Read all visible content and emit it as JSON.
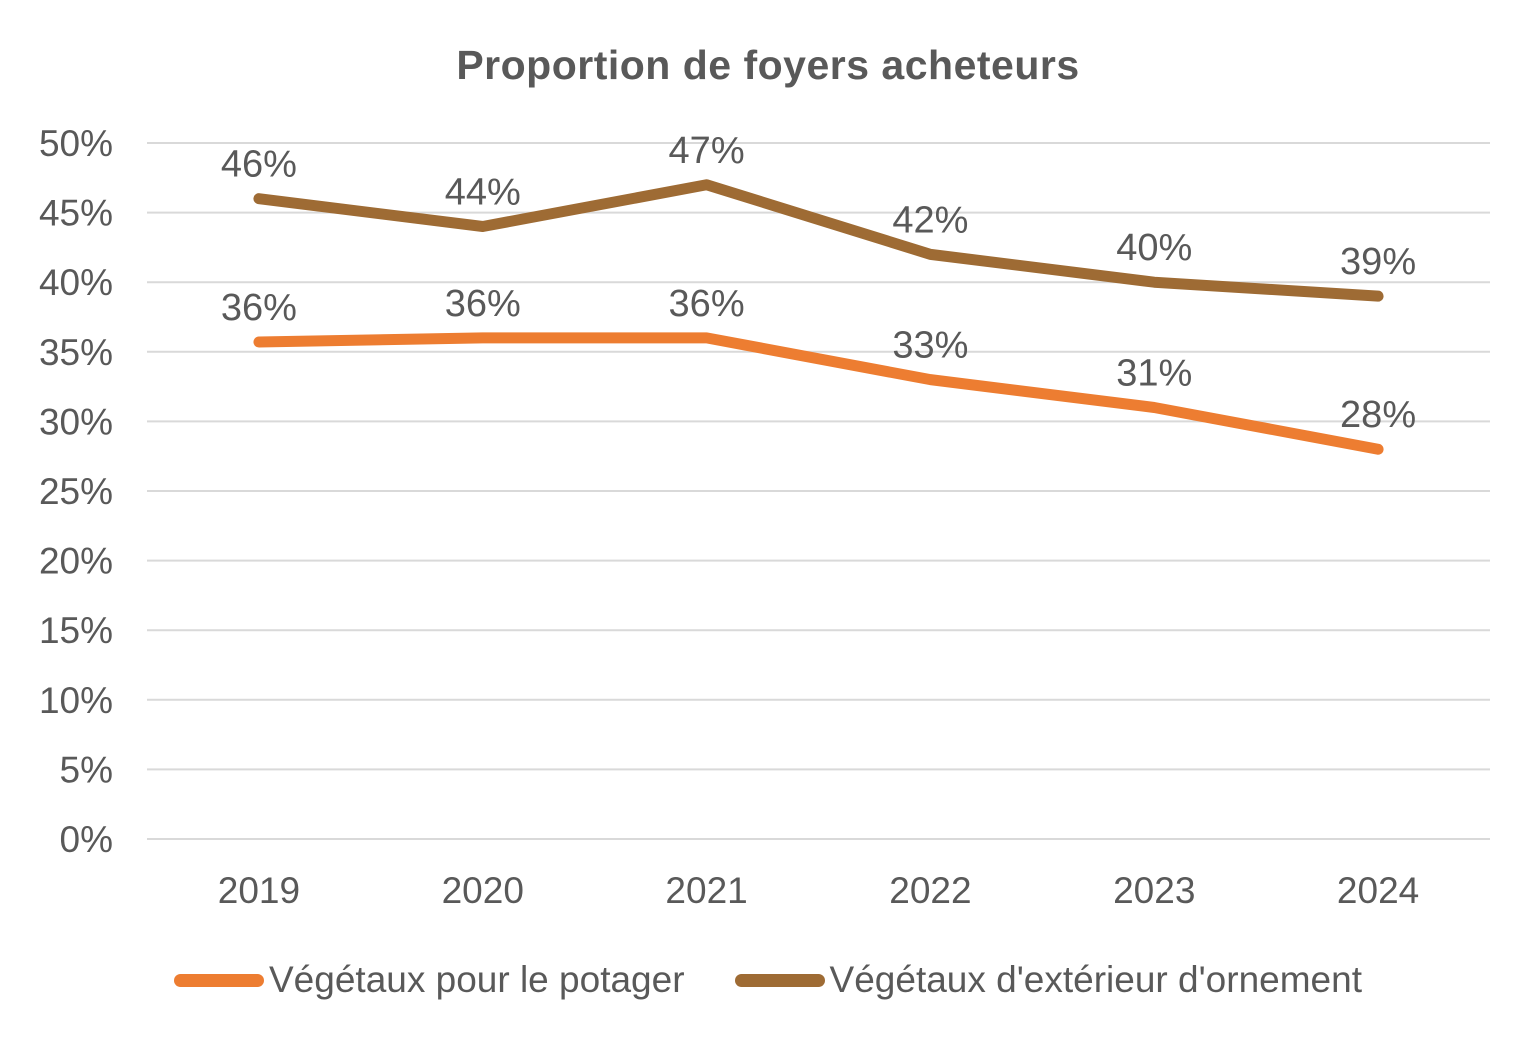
{
  "chart_data": {
    "type": "line",
    "title": "Proportion de foyers acheteurs",
    "categories": [
      "2019",
      "2020",
      "2021",
      "2022",
      "2023",
      "2024"
    ],
    "series": [
      {
        "name": "Végétaux pour le potager",
        "color": "#ED7D31",
        "values": [
          36,
          36,
          36,
          33,
          31,
          28
        ],
        "plot_values": [
          35.7,
          36,
          36,
          33,
          31,
          28
        ],
        "labels": [
          "36%",
          "36%",
          "36%",
          "33%",
          "31%",
          "28%"
        ]
      },
      {
        "name": "Végétaux d'extérieur d'ornement",
        "color": "#9E6B34",
        "values": [
          46,
          44,
          47,
          42,
          40,
          39
        ],
        "plot_values": [
          46,
          44,
          47,
          42,
          40,
          39
        ],
        "labels": [
          "46%",
          "44%",
          "47%",
          "42%",
          "40%",
          "39%"
        ]
      }
    ],
    "xlabel": "",
    "ylabel": "",
    "ylim": [
      0,
      50
    ],
    "ytick_step": 5,
    "ytick_labels": [
      "0%",
      "5%",
      "10%",
      "15%",
      "20%",
      "25%",
      "30%",
      "35%",
      "40%",
      "45%",
      "50%"
    ],
    "grid": true,
    "legend_position": "bottom",
    "text_color": "#595959",
    "grid_color": "#D9D9D9",
    "background_color": "#FFFFFF"
  }
}
